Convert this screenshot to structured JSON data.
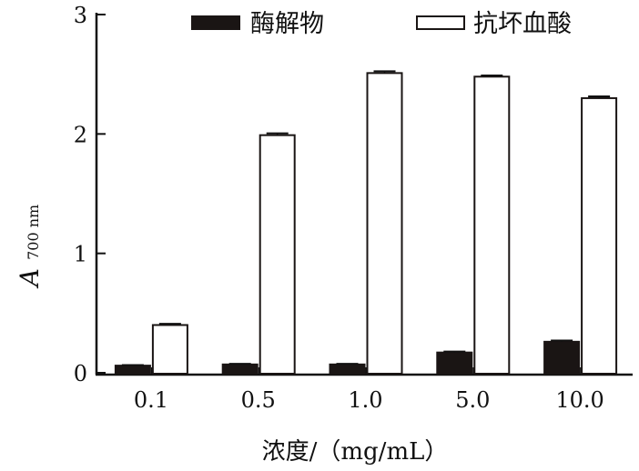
{
  "chart_data": {
    "type": "bar",
    "categories": [
      "0.1",
      "0.5",
      "1.0",
      "5.0",
      "10.0"
    ],
    "series": [
      {
        "name": "酶解物",
        "values": [
          0.06,
          0.07,
          0.07,
          0.17,
          0.26
        ],
        "errors": [
          0.005,
          0.005,
          0.005,
          0.008,
          0.01
        ],
        "color": "#1a1514"
      },
      {
        "name": "抗坏血酸",
        "values": [
          0.4,
          1.99,
          2.51,
          2.48,
          2.3
        ],
        "errors": [
          0.01,
          0.015,
          0.015,
          0.01,
          0.015
        ],
        "color": "#ffffff"
      }
    ],
    "ylim": [
      0,
      3
    ],
    "yticks": [
      "0",
      "1",
      "2",
      "3"
    ],
    "xlabel": "浓度/（mg/mL）",
    "ylabel": "A",
    "ylabel_subscript": "700 nm",
    "legend_position": "top",
    "grid": false
  }
}
